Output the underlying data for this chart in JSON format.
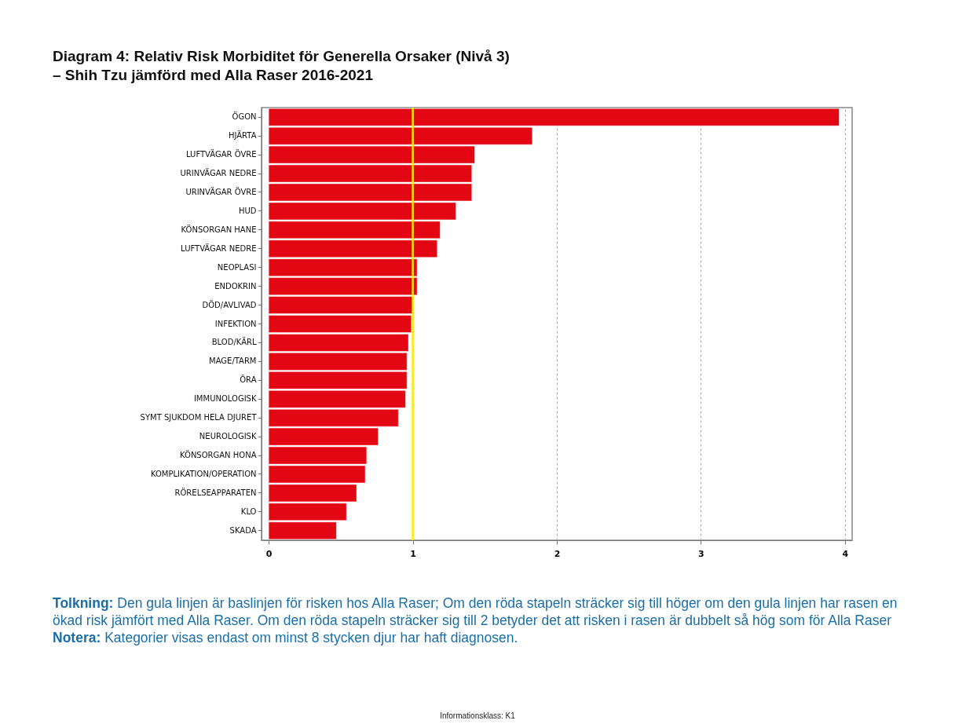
{
  "chart_data": {
    "type": "bar",
    "orientation": "horizontal",
    "title": "Diagram 4: Relativ Risk Morbiditet för Generella Orsaker (Nivå 3)",
    "subtitle": "–  Shih Tzu jämförd med Alla Raser 2016-2021",
    "categories": [
      "ÖGON",
      "HJÄRTA",
      "LUFTVÄGAR ÖVRE",
      "URINVÄGAR NEDRE",
      "URINVÄGAR ÖVRE",
      "HUD",
      "KÖNSORGAN HANE",
      "LUFTVÄGAR NEDRE",
      "NEOPLASI",
      "ENDOKRIN",
      "DÖD/AVLIVAD",
      "INFEKTION",
      "BLOD/KÄRL",
      "MAGE/TARM",
      "ÖRA",
      "IMMUNOLOGISK",
      "SYMT SJUKDOM HELA DJURET",
      "NEUROLOGISK",
      "KÖNSORGAN HONA",
      "KOMPLIKATION/OPERATION",
      "RÖRELSEAPPARATEN",
      "KLO",
      "SKADA"
    ],
    "values": [
      3.96,
      1.83,
      1.43,
      1.41,
      1.41,
      1.3,
      1.19,
      1.17,
      1.03,
      1.03,
      1.0,
      0.99,
      0.97,
      0.96,
      0.96,
      0.95,
      0.9,
      0.76,
      0.68,
      0.67,
      0.61,
      0.54,
      0.47
    ],
    "color": "#e30613",
    "xlim": [
      -0.05,
      4.05
    ],
    "xticks": [
      0,
      1,
      2,
      3,
      4
    ],
    "grid": "x",
    "ref_lines": [
      {
        "axis": "x",
        "value": 1,
        "color": "#ffee00"
      }
    ],
    "annotations": [
      "Tolkning: Den gula linjen är baslinjen för risken hos Alla Raser; Om den röda stapeln sträcker sig till höger om den gula linjen har rasen en ökad risk jämfört med Alla Raser. Om den röda stapeln sträcker sig till 2 betyder det att risken i rasen är dubbelt så hög som för Alla Raser",
      "Notera: Kategorier visas endast om minst 8 stycken djur har haft diagnosen.",
      "Informationsklass: K1"
    ]
  }
}
